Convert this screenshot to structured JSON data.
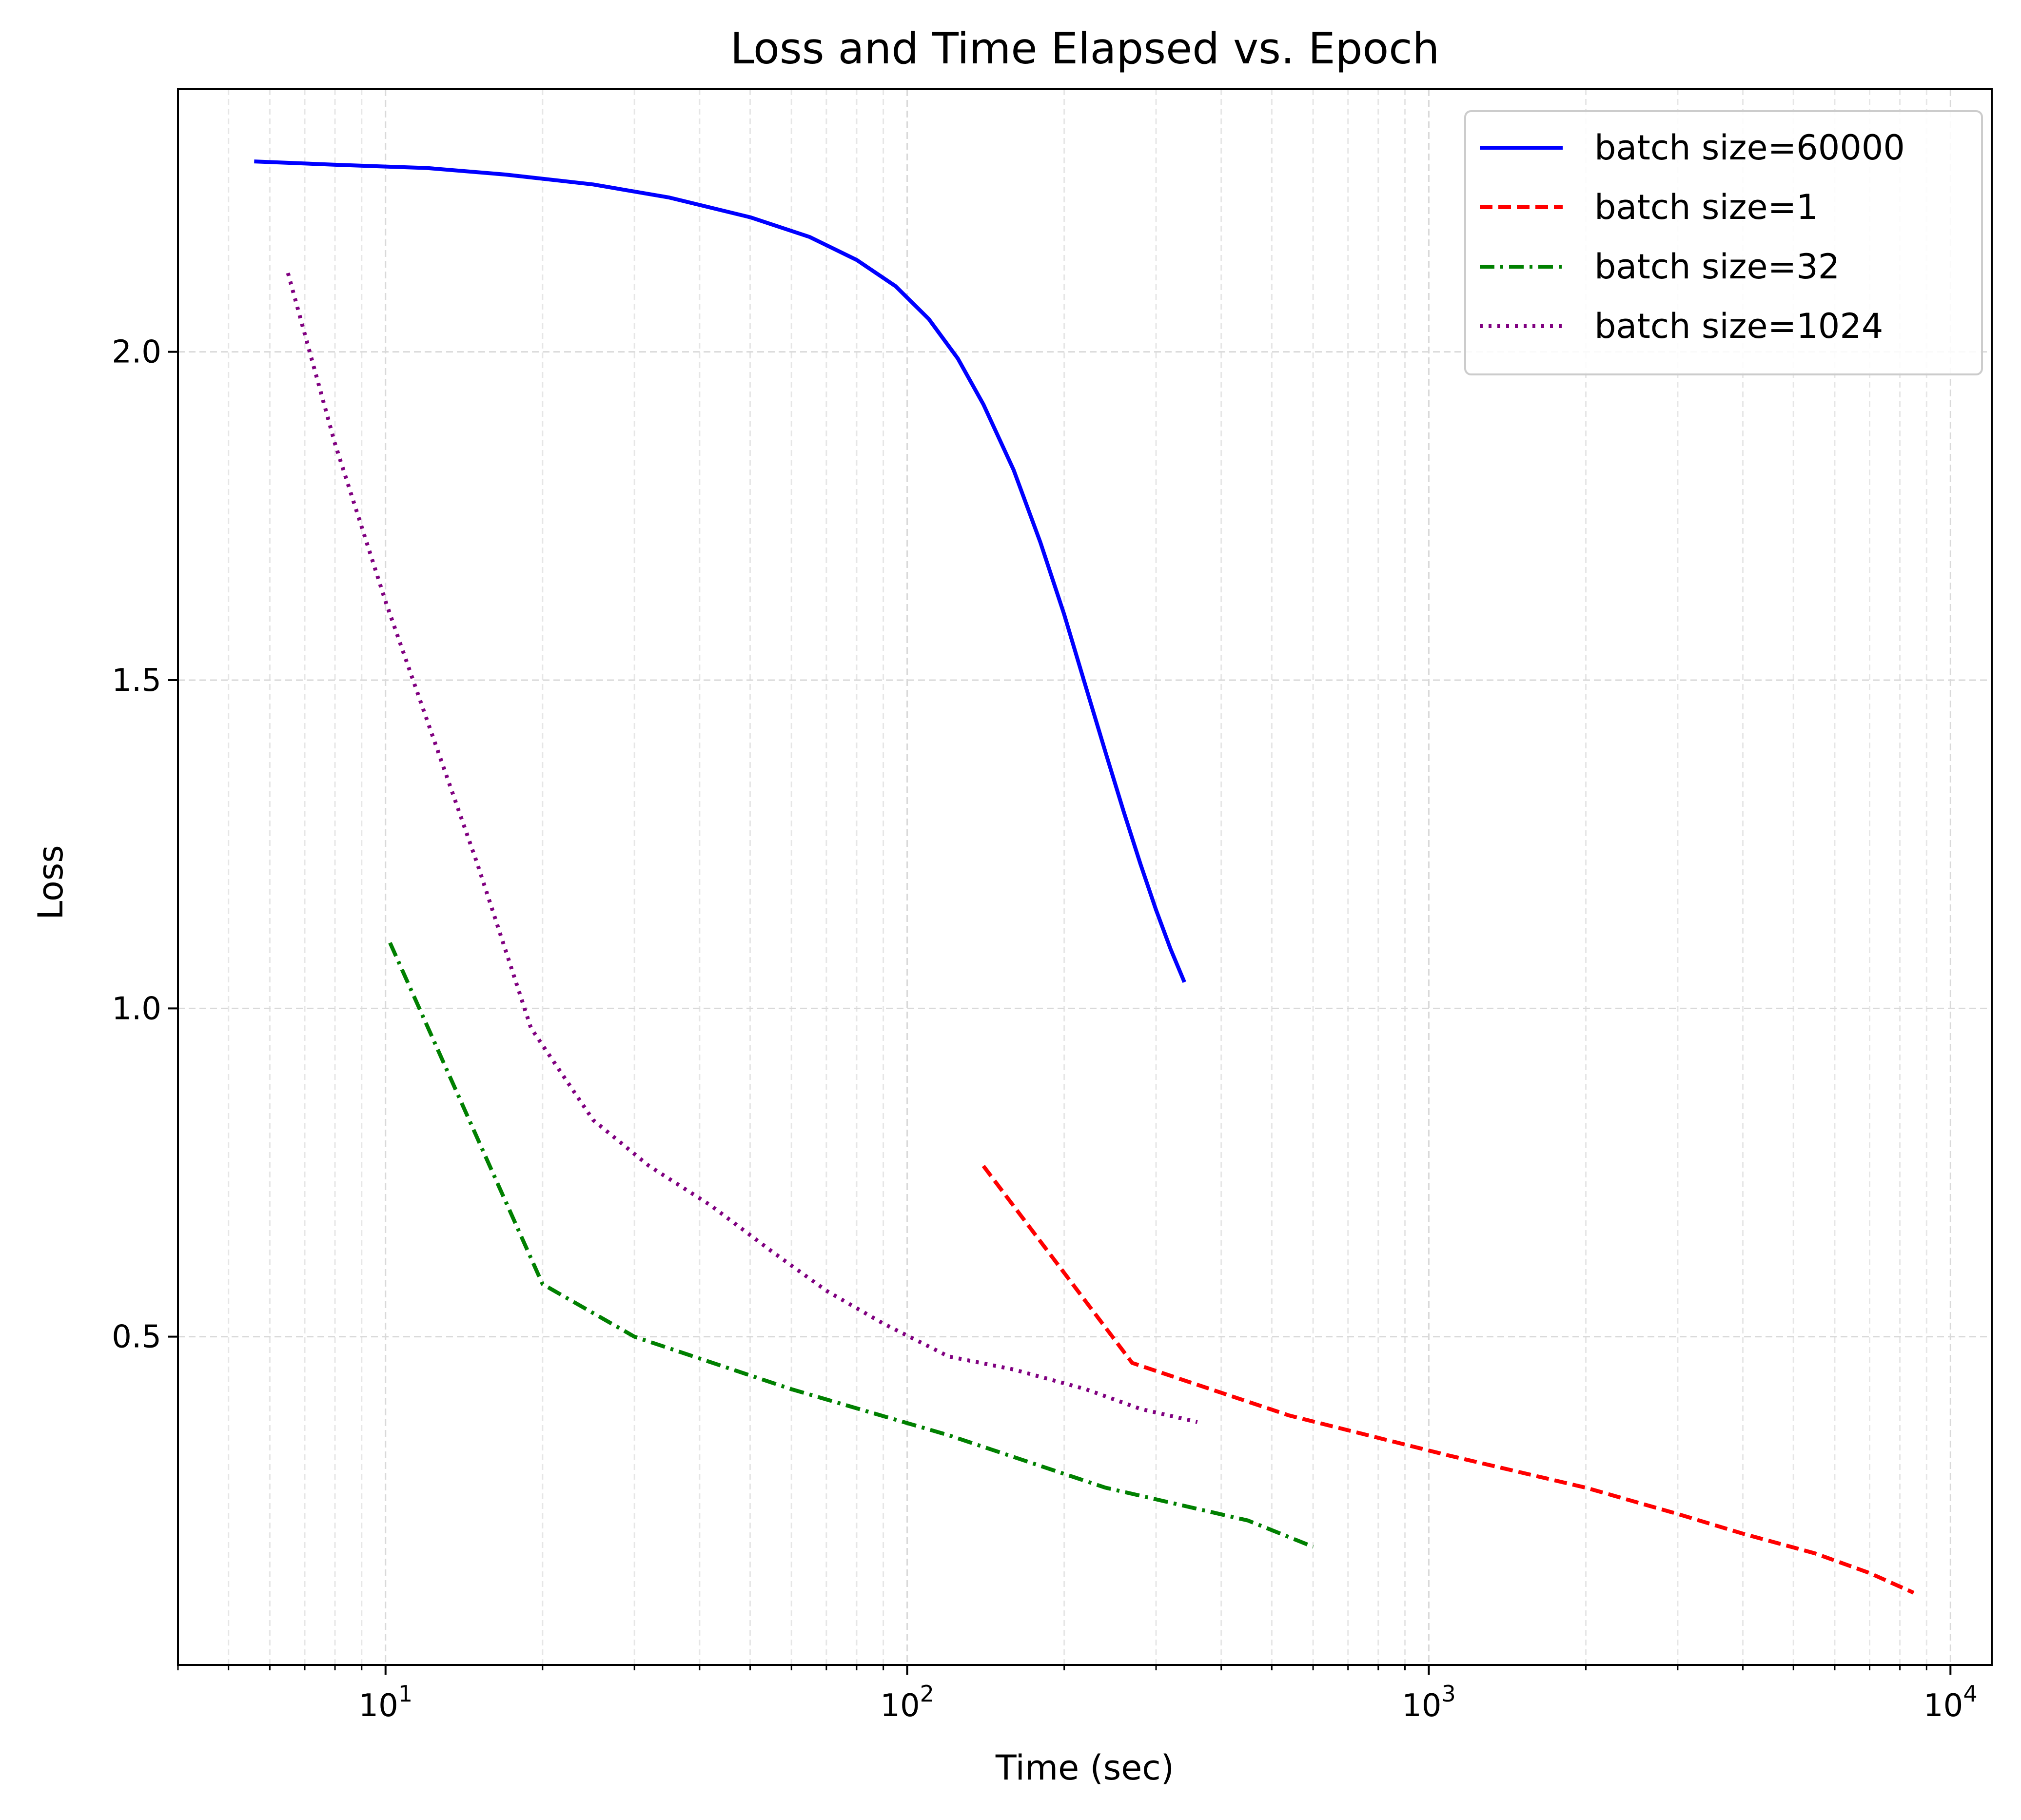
{
  "chart_data": {
    "type": "line",
    "title": "Loss and Time Elapsed vs. Epoch",
    "xlabel": "Time (sec)",
    "ylabel": "Loss",
    "x_scale": "log",
    "xlim": [
      4,
      12000
    ],
    "ylim": [
      0.0,
      2.4
    ],
    "x_ticks": [
      {
        "value": 10,
        "base": "10",
        "exp": "1"
      },
      {
        "value": 100,
        "base": "10",
        "exp": "2"
      },
      {
        "value": 1000,
        "base": "10",
        "exp": "3"
      },
      {
        "value": 10000,
        "base": "10",
        "exp": "4"
      }
    ],
    "y_ticks": [
      {
        "value": 0.5,
        "label": "0.5"
      },
      {
        "value": 1.0,
        "label": "1.0"
      },
      {
        "value": 1.5,
        "label": "1.5"
      },
      {
        "value": 2.0,
        "label": "2.0"
      }
    ],
    "grid": true,
    "legend_position": "top-right",
    "series": [
      {
        "name": "batch size=60000",
        "color": "#0000ff",
        "style": "solid",
        "x": [
          5.6,
          8,
          12,
          17,
          25,
          35,
          50,
          65,
          80,
          95,
          110,
          125,
          140,
          160,
          180,
          200,
          220,
          240,
          260,
          280,
          300,
          320,
          340
        ],
        "y": [
          2.29,
          2.285,
          2.28,
          2.27,
          2.255,
          2.235,
          2.205,
          2.175,
          2.14,
          2.1,
          2.05,
          1.99,
          1.92,
          1.82,
          1.71,
          1.6,
          1.49,
          1.39,
          1.3,
          1.22,
          1.15,
          1.09,
          1.04
        ]
      },
      {
        "name": "batch size=1",
        "color": "#ff0000",
        "style": "dashed",
        "x": [
          140,
          270,
          540,
          1080,
          2000,
          3000,
          4000,
          5500,
          7000,
          8500
        ],
        "y": [
          0.76,
          0.46,
          0.38,
          0.32,
          0.27,
          0.23,
          0.2,
          0.17,
          0.14,
          0.11
        ]
      },
      {
        "name": "batch size=32",
        "color": "#008000",
        "style": "dashdot",
        "x": [
          10.2,
          20,
          30,
          60,
          120,
          240,
          450,
          600
        ],
        "y": [
          1.1,
          0.58,
          0.5,
          0.42,
          0.35,
          0.27,
          0.22,
          0.18
        ]
      },
      {
        "name": "batch size=1024",
        "color": "#800080",
        "style": "dotted",
        "x": [
          6.5,
          8,
          10,
          12,
          15,
          19,
          25,
          32,
          42,
          55,
          70,
          90,
          120,
          160,
          220,
          280,
          360
        ],
        "y": [
          2.12,
          1.86,
          1.62,
          1.44,
          1.22,
          0.97,
          0.83,
          0.76,
          0.7,
          0.63,
          0.57,
          0.52,
          0.47,
          0.45,
          0.42,
          0.39,
          0.37
        ]
      }
    ]
  }
}
